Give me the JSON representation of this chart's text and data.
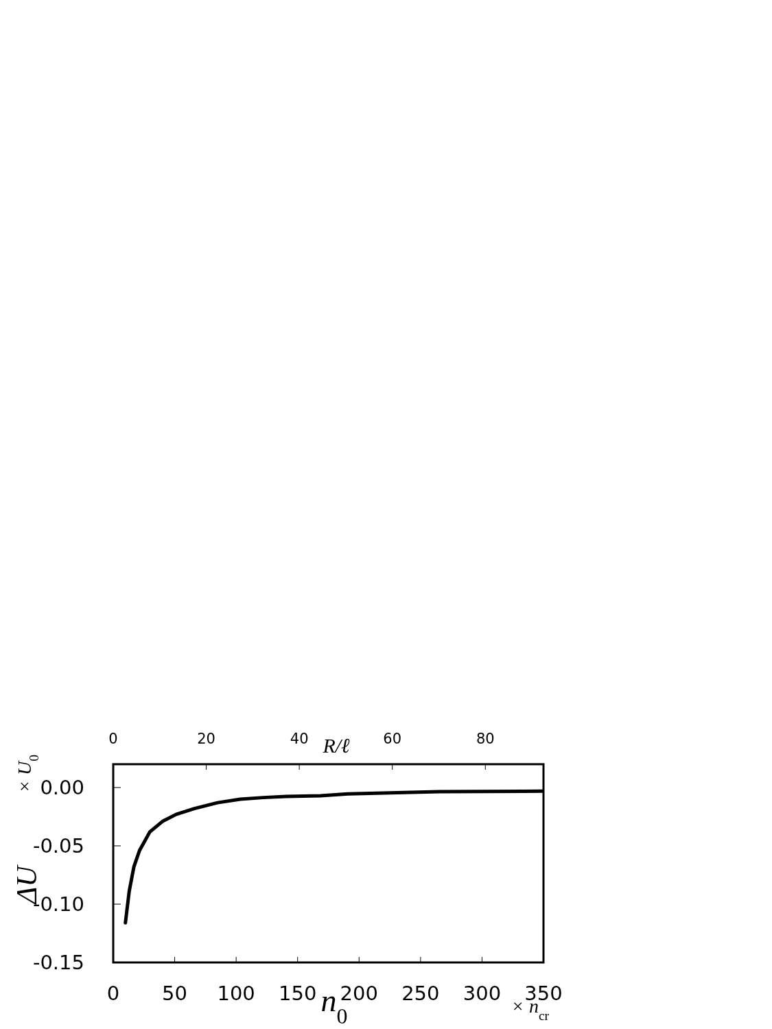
{
  "chart_data": {
    "type": "line",
    "xlabel": "n$_{0}$",
    "ylabel": "ΔU",
    "x2label": "R/ℓ",
    "annotations": [
      "× U$_{0}$",
      "× n$_{cr}$"
    ],
    "xlim": [
      0,
      350
    ],
    "xticks": [
      0,
      50,
      100,
      150,
      200,
      250,
      300,
      350
    ],
    "x2lim": [
      0,
      92.5
    ],
    "x2ticks": [
      0,
      20,
      40,
      60,
      80
    ],
    "ylim": [
      -0.15,
      0.02
    ],
    "yticks": [
      {
        "value": 0,
        "label": "0.00"
      },
      {
        "value": -0.05,
        "label": "-0.05"
      },
      {
        "value": -0.1,
        "label": "-0.10"
      },
      {
        "value": -0.15,
        "label": "-0.15"
      }
    ],
    "grid": false,
    "marker": "none",
    "line_style": "solid",
    "series": [
      {
        "color": "#000000",
        "x": [
          9.9,
          13.0,
          16.8,
          21.4,
          29.8,
          40.1,
          51.2,
          66.1,
          84.8,
          103.4,
          122,
          140.7,
          168.6,
          191,
          265.5,
          349
        ],
        "values": [
          -0.116,
          -0.089,
          -0.068,
          -0.054,
          -0.038,
          -0.029,
          -0.023,
          -0.018,
          -0.013,
          -0.01,
          -0.0086,
          -0.0076,
          -0.0071,
          -0.0055,
          -0.0035,
          -0.0031
        ]
      }
    ]
  }
}
